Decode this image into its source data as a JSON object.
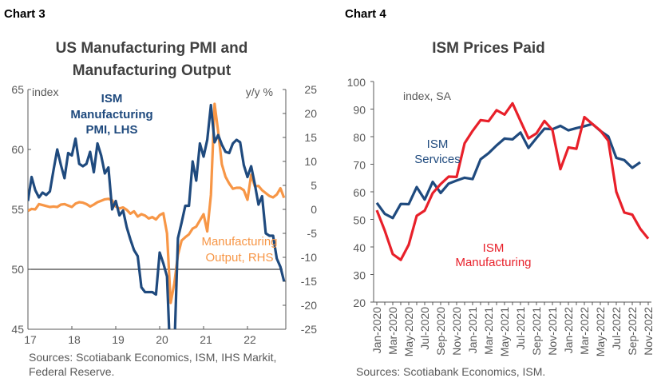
{
  "chart_data": [
    {
      "type": "line",
      "header": "Chart 3",
      "title": [
        "US Manufacturing PMI and",
        "Manufacturing Output"
      ],
      "left_unit": "index",
      "right_unit": "y/y %",
      "x_tick_labels": [
        "17",
        "18",
        "19",
        "20",
        "21",
        "22"
      ],
      "x_start": "2017-01",
      "frequency": "monthly",
      "ylim_left": [
        45,
        65
      ],
      "yticks_left": [
        "65",
        "60",
        "55",
        "50",
        "45"
      ],
      "ylim_right": [
        -25,
        25
      ],
      "yticks_right": [
        "25",
        "20",
        "15",
        "10",
        "5",
        "0",
        "-5",
        "-10",
        "-15",
        "-20",
        "-25"
      ],
      "reference_line_left": 50,
      "series": [
        {
          "name": "ISM Manufacturing PMI, LHS",
          "label_lines": [
            "ISM",
            "Manufacturing",
            "PMI, LHS"
          ],
          "axis": "left",
          "color": "#1F4A7E",
          "values": [
            55.7,
            57.7,
            56.6,
            56.0,
            56.4,
            56.2,
            56.5,
            58.3,
            60.0,
            58.7,
            57.6,
            59.7,
            59.5,
            60.9,
            58.8,
            58.6,
            58.8,
            59.8,
            58.1,
            60.5,
            59.5,
            58.0,
            58.5,
            55.0,
            55.7,
            54.5,
            54.9,
            53.5,
            52.5,
            51.6,
            51.1,
            48.5,
            48.1,
            48.1,
            48.1,
            47.9,
            51.4,
            50.5,
            49.4,
            41.7,
            43.1,
            52.6,
            53.9,
            55.3,
            55.3,
            59.0,
            57.4,
            60.5,
            59.4,
            60.8,
            63.7,
            60.6,
            61.2,
            60.4,
            59.8,
            59.7,
            60.5,
            60.8,
            60.6,
            58.7,
            57.7,
            58.6,
            57.1,
            55.4,
            56.1,
            53.0,
            52.8,
            52.8,
            50.9,
            50.2,
            49.0
          ]
        },
        {
          "name": "Manufacturing Output, RHS",
          "label_lines": [
            "Manufacturing",
            "Output, RHS"
          ],
          "axis": "right",
          "color": "#F79646",
          "values": [
            -0.3,
            0.1,
            0.0,
            1.1,
            0.9,
            0.7,
            0.5,
            0.6,
            0.5,
            1.0,
            1.1,
            0.8,
            0.5,
            1.2,
            1.5,
            1.4,
            1.1,
            0.6,
            1.0,
            1.5,
            1.8,
            2.1,
            2.2,
            1.9,
            0.6,
            0.2,
            0.4,
            -0.1,
            -0.9,
            -0.4,
            -1.5,
            -1.0,
            -1.3,
            -1.9,
            -1.6,
            -2.1,
            -1.2,
            -0.8,
            -5.0,
            -19.5,
            -15.5,
            -9.5,
            -6.5,
            -5.8,
            -5.2,
            -4.0,
            -3.6,
            -2.3,
            -1.0,
            -4.6,
            3.0,
            22.0,
            16.2,
            9.4,
            6.8,
            5.4,
            4.3,
            4.5,
            4.5,
            4.0,
            2.0,
            7.2,
            4.8,
            4.9,
            4.0,
            3.4,
            2.8,
            2.5,
            3.1,
            4.4,
            2.4
          ]
        }
      ],
      "sources": [
        "Sources: Scotiabank Economics, ISM, IHS Markit,",
        "Federal Reserve."
      ]
    },
    {
      "type": "line",
      "header": "Chart 4",
      "title": "ISM Prices Paid",
      "unit": "index, SA",
      "x_tick_labels": [
        "Jan-2020",
        "Mar-2020",
        "May-2020",
        "Jul-2020",
        "Sep-2020",
        "Nov-2020",
        "Jan-2021",
        "Mar-2021",
        "May-2021",
        "Jul-2021",
        "Sep-2021",
        "Nov-2021",
        "Jan-2022",
        "Mar-2022",
        "May-2022",
        "Jul-2022",
        "Sep-2022",
        "Nov-2022"
      ],
      "x_start": "2020-01",
      "frequency": "monthly",
      "ylim": [
        20,
        100
      ],
      "yticks": [
        "100",
        "90",
        "80",
        "70",
        "60",
        "50",
        "40",
        "30",
        "20"
      ],
      "series": [
        {
          "name": "ISM Services",
          "label_lines": [
            "ISM",
            "Services"
          ],
          "color": "#1F4A7E",
          "values": [
            56.0,
            52.0,
            50.5,
            55.6,
            55.5,
            61.7,
            57.2,
            63.6,
            59.6,
            63.0,
            64.1,
            65.1,
            64.6,
            71.8,
            74.0,
            76.8,
            79.3,
            79.0,
            81.5,
            75.9,
            79.5,
            82.9,
            82.7,
            83.9,
            82.3,
            83.1,
            83.8,
            84.6,
            82.1,
            80.1,
            72.3,
            71.5,
            68.7,
            70.7
          ]
        },
        {
          "name": "ISM Manufacturing",
          "label_lines": [
            "ISM",
            "Manufacturing"
          ],
          "color": "#E8202A",
          "values": [
            53.3,
            45.9,
            37.4,
            35.3,
            40.8,
            51.3,
            53.2,
            59.5,
            62.8,
            65.5,
            65.4,
            77.6,
            82.1,
            86.0,
            85.6,
            89.6,
            88.0,
            92.1,
            85.7,
            79.4,
            81.2,
            85.7,
            82.4,
            68.2,
            76.1,
            75.6,
            87.1,
            84.6,
            82.2,
            78.5,
            60.0,
            52.5,
            51.7,
            46.6,
            43.0
          ]
        }
      ],
      "sources": [
        "Sources: Scotiabank Economics, ISM."
      ]
    }
  ]
}
